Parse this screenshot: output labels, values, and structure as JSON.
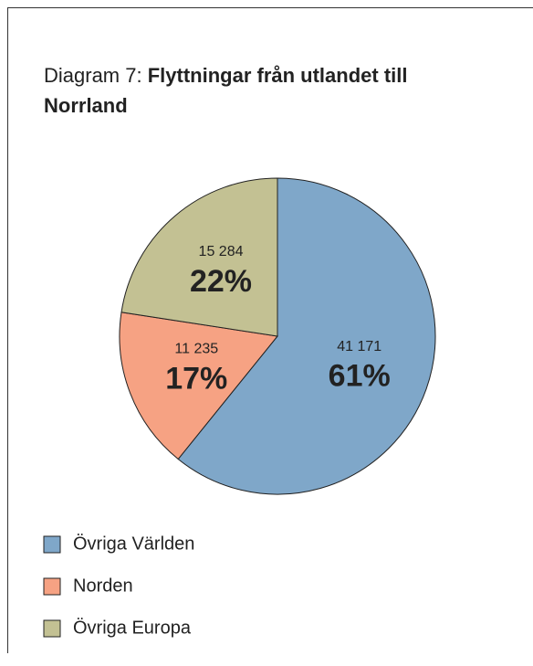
{
  "chart_data": {
    "type": "pie",
    "title_prefix": "Diagram 7:",
    "title": "Flyttningar från utlandet till Norrland",
    "categories": [
      "Övriga Världen",
      "Norden",
      "Övriga Europa"
    ],
    "values": [
      41171,
      11235,
      15284
    ],
    "value_labels": [
      "41 171",
      "11 235",
      "15 284"
    ],
    "percentages": [
      61,
      17,
      22
    ],
    "percentage_labels": [
      "61%",
      "17%",
      "22%"
    ],
    "colors": [
      "#7fa7c9",
      "#f6a283",
      "#c3c193"
    ]
  }
}
